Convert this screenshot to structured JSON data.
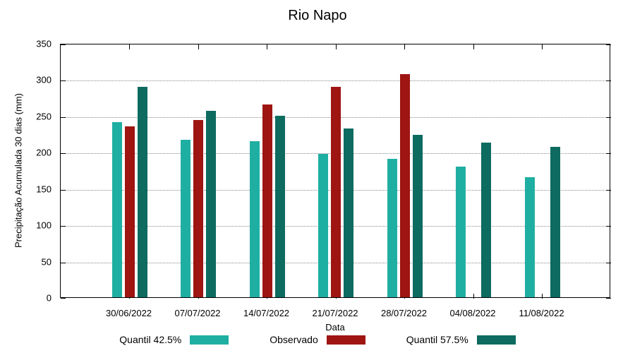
{
  "chart_data": {
    "type": "bar",
    "title": "Rio Napo",
    "xlabel": "Data",
    "ylabel": "Precipitação Acumulada 30 dias (mm)",
    "ylim": [
      0,
      350
    ],
    "yticks": [
      0,
      50,
      100,
      150,
      200,
      250,
      300,
      350
    ],
    "grid": "dotted-horizontal",
    "legend_position": "bottom",
    "categories": [
      "30/06/2022",
      "07/07/2022",
      "14/07/2022",
      "21/07/2022",
      "28/07/2022",
      "04/08/2022",
      "11/08/2022"
    ],
    "series": [
      {
        "name": "Quantil 42.5%",
        "color": "#1fafa2",
        "values": [
          241,
          217,
          215,
          197,
          191,
          180,
          165
        ]
      },
      {
        "name": "Observado",
        "color": "#9e1512",
        "values": [
          235,
          244,
          265,
          290,
          307,
          null,
          null
        ]
      },
      {
        "name": "Quantil 57.5%",
        "color": "#0d6b60",
        "values": [
          290,
          257,
          250,
          232,
          224,
          213,
          207
        ]
      }
    ]
  }
}
